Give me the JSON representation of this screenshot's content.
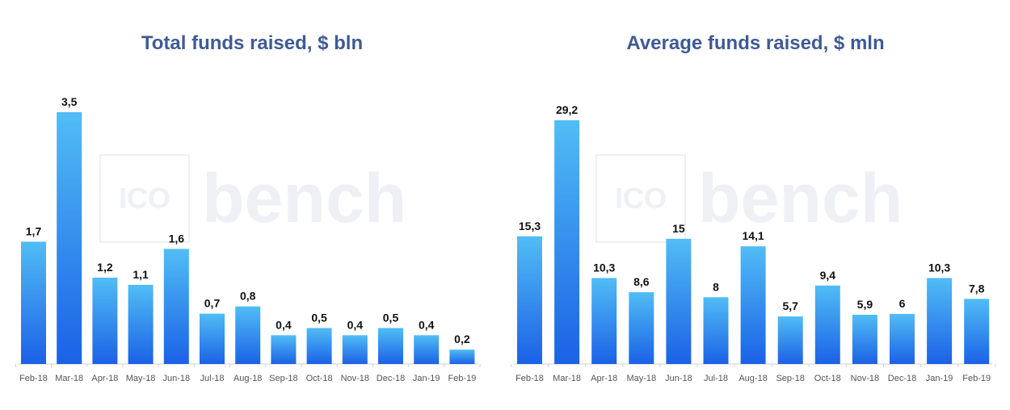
{
  "colors": {
    "bar_top": "#51bdf5",
    "bar_bottom": "#1b61e6",
    "title": "#3f5a95",
    "axis": "#d0d0d0"
  },
  "chart_data": [
    {
      "type": "bar",
      "title": "Total funds raised, $ bln",
      "xlabel": "",
      "ylabel": "",
      "ylim": [
        0,
        3.5
      ],
      "grid": false,
      "categories": [
        "Feb-18",
        "Mar-18",
        "Apr-18",
        "May-18",
        "Jun-18",
        "Jul-18",
        "Aug-18",
        "Sep-18",
        "Oct-18",
        "Nov-18",
        "Dec-18",
        "Jan-19",
        "Feb-19"
      ],
      "values": [
        1.7,
        3.5,
        1.2,
        1.1,
        1.6,
        0.7,
        0.8,
        0.4,
        0.5,
        0.4,
        0.5,
        0.4,
        0.2
      ],
      "value_labels": [
        "1,7",
        "3,5",
        "1,2",
        "1,1",
        "1,6",
        "0,7",
        "0,8",
        "0,4",
        "0,5",
        "0,4",
        "0,5",
        "0,4",
        "0,2"
      ]
    },
    {
      "type": "bar",
      "title": "Average funds raised, $ mln",
      "xlabel": "",
      "ylabel": "",
      "ylim": [
        0,
        29.2
      ],
      "grid": false,
      "categories": [
        "Feb-18",
        "Mar-18",
        "Apr-18",
        "May-18",
        "Jun-18",
        "Jul-18",
        "Aug-18",
        "Sep-18",
        "Oct-18",
        "Nov-18",
        "Dec-18",
        "Jan-19",
        "Feb-19"
      ],
      "values": [
        15.3,
        29.2,
        10.3,
        8.6,
        15,
        8,
        14.1,
        5.7,
        9.4,
        5.9,
        6,
        10.3,
        7.8
      ],
      "value_labels": [
        "15,3",
        "29,2",
        "10,3",
        "8,6",
        "15",
        "8",
        "14,1",
        "5,7",
        "9,4",
        "5,9",
        "6",
        "10,3",
        "7,8"
      ]
    }
  ],
  "watermark": {
    "box_text": "ICO",
    "word": "bench"
  }
}
